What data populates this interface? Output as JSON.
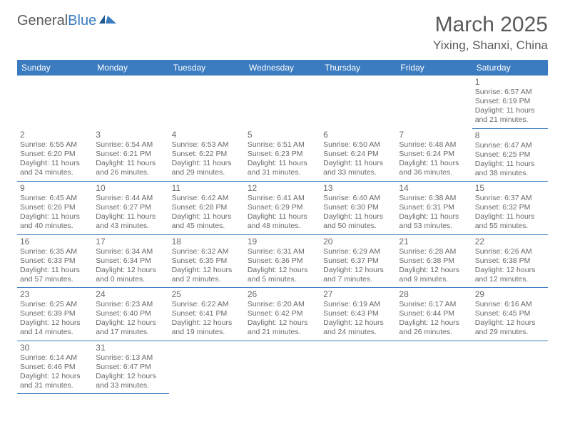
{
  "brand": {
    "part1": "General",
    "part2": "Blue"
  },
  "title": "March 2025",
  "location": "Yixing, Shanxi, China",
  "colors": {
    "header_bg": "#3b7bbf",
    "header_text": "#ffffff",
    "body_text": "#5a5a5a",
    "cell_text": "#6a6a6a",
    "border": "#3b7bbf",
    "background": "#ffffff"
  },
  "weekdays": [
    "Sunday",
    "Monday",
    "Tuesday",
    "Wednesday",
    "Thursday",
    "Friday",
    "Saturday"
  ],
  "weeks": [
    [
      null,
      null,
      null,
      null,
      null,
      null,
      {
        "n": "1",
        "sr": "Sunrise: 6:57 AM",
        "ss": "Sunset: 6:19 PM",
        "dl1": "Daylight: 11 hours",
        "dl2": "and 21 minutes."
      }
    ],
    [
      {
        "n": "2",
        "sr": "Sunrise: 6:55 AM",
        "ss": "Sunset: 6:20 PM",
        "dl1": "Daylight: 11 hours",
        "dl2": "and 24 minutes."
      },
      {
        "n": "3",
        "sr": "Sunrise: 6:54 AM",
        "ss": "Sunset: 6:21 PM",
        "dl1": "Daylight: 11 hours",
        "dl2": "and 26 minutes."
      },
      {
        "n": "4",
        "sr": "Sunrise: 6:53 AM",
        "ss": "Sunset: 6:22 PM",
        "dl1": "Daylight: 11 hours",
        "dl2": "and 29 minutes."
      },
      {
        "n": "5",
        "sr": "Sunrise: 6:51 AM",
        "ss": "Sunset: 6:23 PM",
        "dl1": "Daylight: 11 hours",
        "dl2": "and 31 minutes."
      },
      {
        "n": "6",
        "sr": "Sunrise: 6:50 AM",
        "ss": "Sunset: 6:24 PM",
        "dl1": "Daylight: 11 hours",
        "dl2": "and 33 minutes."
      },
      {
        "n": "7",
        "sr": "Sunrise: 6:48 AM",
        "ss": "Sunset: 6:24 PM",
        "dl1": "Daylight: 11 hours",
        "dl2": "and 36 minutes."
      },
      {
        "n": "8",
        "sr": "Sunrise: 6:47 AM",
        "ss": "Sunset: 6:25 PM",
        "dl1": "Daylight: 11 hours",
        "dl2": "and 38 minutes."
      }
    ],
    [
      {
        "n": "9",
        "sr": "Sunrise: 6:45 AM",
        "ss": "Sunset: 6:26 PM",
        "dl1": "Daylight: 11 hours",
        "dl2": "and 40 minutes."
      },
      {
        "n": "10",
        "sr": "Sunrise: 6:44 AM",
        "ss": "Sunset: 6:27 PM",
        "dl1": "Daylight: 11 hours",
        "dl2": "and 43 minutes."
      },
      {
        "n": "11",
        "sr": "Sunrise: 6:42 AM",
        "ss": "Sunset: 6:28 PM",
        "dl1": "Daylight: 11 hours",
        "dl2": "and 45 minutes."
      },
      {
        "n": "12",
        "sr": "Sunrise: 6:41 AM",
        "ss": "Sunset: 6:29 PM",
        "dl1": "Daylight: 11 hours",
        "dl2": "and 48 minutes."
      },
      {
        "n": "13",
        "sr": "Sunrise: 6:40 AM",
        "ss": "Sunset: 6:30 PM",
        "dl1": "Daylight: 11 hours",
        "dl2": "and 50 minutes."
      },
      {
        "n": "14",
        "sr": "Sunrise: 6:38 AM",
        "ss": "Sunset: 6:31 PM",
        "dl1": "Daylight: 11 hours",
        "dl2": "and 53 minutes."
      },
      {
        "n": "15",
        "sr": "Sunrise: 6:37 AM",
        "ss": "Sunset: 6:32 PM",
        "dl1": "Daylight: 11 hours",
        "dl2": "and 55 minutes."
      }
    ],
    [
      {
        "n": "16",
        "sr": "Sunrise: 6:35 AM",
        "ss": "Sunset: 6:33 PM",
        "dl1": "Daylight: 11 hours",
        "dl2": "and 57 minutes."
      },
      {
        "n": "17",
        "sr": "Sunrise: 6:34 AM",
        "ss": "Sunset: 6:34 PM",
        "dl1": "Daylight: 12 hours",
        "dl2": "and 0 minutes."
      },
      {
        "n": "18",
        "sr": "Sunrise: 6:32 AM",
        "ss": "Sunset: 6:35 PM",
        "dl1": "Daylight: 12 hours",
        "dl2": "and 2 minutes."
      },
      {
        "n": "19",
        "sr": "Sunrise: 6:31 AM",
        "ss": "Sunset: 6:36 PM",
        "dl1": "Daylight: 12 hours",
        "dl2": "and 5 minutes."
      },
      {
        "n": "20",
        "sr": "Sunrise: 6:29 AM",
        "ss": "Sunset: 6:37 PM",
        "dl1": "Daylight: 12 hours",
        "dl2": "and 7 minutes."
      },
      {
        "n": "21",
        "sr": "Sunrise: 6:28 AM",
        "ss": "Sunset: 6:38 PM",
        "dl1": "Daylight: 12 hours",
        "dl2": "and 9 minutes."
      },
      {
        "n": "22",
        "sr": "Sunrise: 6:26 AM",
        "ss": "Sunset: 6:38 PM",
        "dl1": "Daylight: 12 hours",
        "dl2": "and 12 minutes."
      }
    ],
    [
      {
        "n": "23",
        "sr": "Sunrise: 6:25 AM",
        "ss": "Sunset: 6:39 PM",
        "dl1": "Daylight: 12 hours",
        "dl2": "and 14 minutes."
      },
      {
        "n": "24",
        "sr": "Sunrise: 6:23 AM",
        "ss": "Sunset: 6:40 PM",
        "dl1": "Daylight: 12 hours",
        "dl2": "and 17 minutes."
      },
      {
        "n": "25",
        "sr": "Sunrise: 6:22 AM",
        "ss": "Sunset: 6:41 PM",
        "dl1": "Daylight: 12 hours",
        "dl2": "and 19 minutes."
      },
      {
        "n": "26",
        "sr": "Sunrise: 6:20 AM",
        "ss": "Sunset: 6:42 PM",
        "dl1": "Daylight: 12 hours",
        "dl2": "and 21 minutes."
      },
      {
        "n": "27",
        "sr": "Sunrise: 6:19 AM",
        "ss": "Sunset: 6:43 PM",
        "dl1": "Daylight: 12 hours",
        "dl2": "and 24 minutes."
      },
      {
        "n": "28",
        "sr": "Sunrise: 6:17 AM",
        "ss": "Sunset: 6:44 PM",
        "dl1": "Daylight: 12 hours",
        "dl2": "and 26 minutes."
      },
      {
        "n": "29",
        "sr": "Sunrise: 6:16 AM",
        "ss": "Sunset: 6:45 PM",
        "dl1": "Daylight: 12 hours",
        "dl2": "and 29 minutes."
      }
    ],
    [
      {
        "n": "30",
        "sr": "Sunrise: 6:14 AM",
        "ss": "Sunset: 6:46 PM",
        "dl1": "Daylight: 12 hours",
        "dl2": "and 31 minutes."
      },
      {
        "n": "31",
        "sr": "Sunrise: 6:13 AM",
        "ss": "Sunset: 6:47 PM",
        "dl1": "Daylight: 12 hours",
        "dl2": "and 33 minutes."
      },
      null,
      null,
      null,
      null,
      null
    ]
  ]
}
